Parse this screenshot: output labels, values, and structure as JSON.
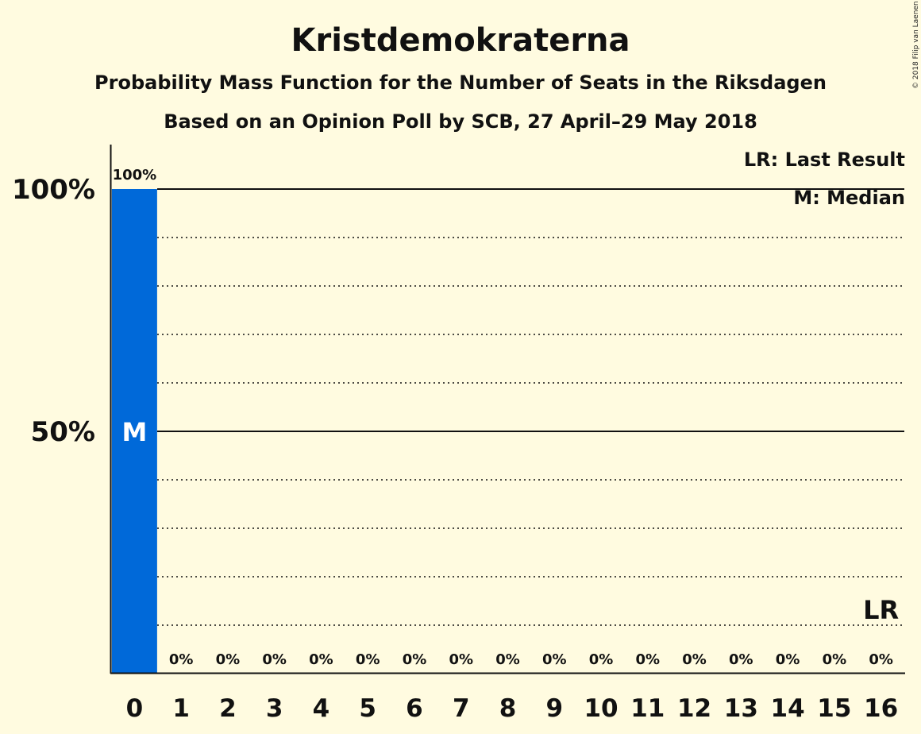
{
  "chart_data": {
    "type": "bar",
    "title": "Kristdemokraterna",
    "subtitle1": "Probability Mass Function for the Number of Seats in the Riksdagen",
    "subtitle2": "Based on an Opinion Poll by SCB, 27 April–29 May 2018",
    "categories": [
      "0",
      "1",
      "2",
      "3",
      "4",
      "5",
      "6",
      "7",
      "8",
      "9",
      "10",
      "11",
      "12",
      "13",
      "14",
      "15",
      "16"
    ],
    "values": [
      100,
      0,
      0,
      0,
      0,
      0,
      0,
      0,
      0,
      0,
      0,
      0,
      0,
      0,
      0,
      0,
      0
    ],
    "value_labels": [
      "100%",
      "0%",
      "0%",
      "0%",
      "0%",
      "0%",
      "0%",
      "0%",
      "0%",
      "0%",
      "0%",
      "0%",
      "0%",
      "0%",
      "0%",
      "0%",
      "0%"
    ],
    "ylim": [
      0,
      100
    ],
    "yticks": [
      {
        "value": 50,
        "label": "50%"
      },
      {
        "value": 100,
        "label": "100%"
      }
    ],
    "minor_gridlines": [
      10,
      20,
      30,
      40,
      60,
      70,
      80,
      90
    ],
    "grid": true,
    "bar_color": "#0069d9",
    "median_seat": "0",
    "median_marker": "M",
    "last_result_seat": "16",
    "last_result_marker": "LR",
    "legend": {
      "placement": "top-right",
      "entries": [
        "LR: Last Result",
        "M: Median"
      ]
    },
    "copyright": "© 2018 Filip van Laenen"
  }
}
